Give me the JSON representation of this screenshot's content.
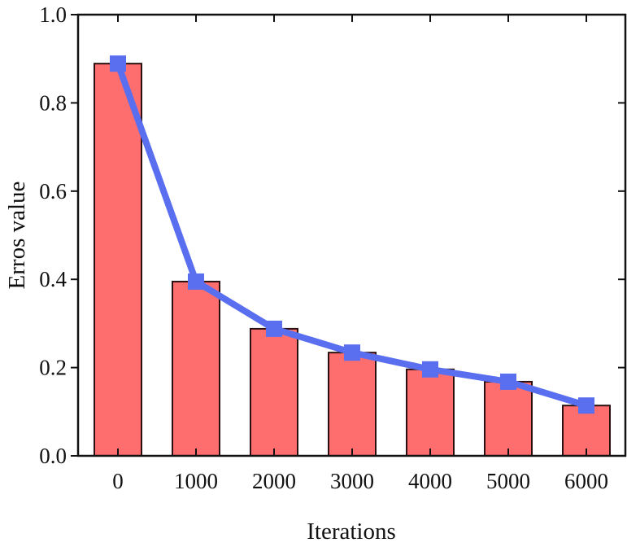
{
  "chart_data": {
    "type": "bar",
    "title": "",
    "xlabel": "Iterations",
    "ylabel": "Erros value",
    "categories": [
      "0",
      "1000",
      "2000",
      "3000",
      "4000",
      "5000",
      "6000"
    ],
    "series": [
      {
        "name": "Erros value (bar)",
        "kind": "bar",
        "color": "#FF6E6E",
        "values": [
          0.889,
          0.395,
          0.288,
          0.234,
          0.196,
          0.168,
          0.114
        ]
      },
      {
        "name": "Erros value (line)",
        "kind": "line",
        "marker": "square",
        "color": "#5A6EF0",
        "values": [
          0.889,
          0.395,
          0.288,
          0.234,
          0.196,
          0.168,
          0.114
        ]
      }
    ],
    "ylim": [
      0.0,
      1.0
    ],
    "yticks": [
      "0.0",
      "0.2",
      "0.4",
      "0.6",
      "0.8",
      "1.0"
    ],
    "ytick_values": [
      0.0,
      0.2,
      0.4,
      0.6,
      0.8,
      1.0
    ],
    "grid": false,
    "legend": null
  },
  "colors": {
    "bar_fill": "#FF6E6E",
    "bar_edge": "#2a1010",
    "line": "#5A6EF0",
    "axis": "#111111"
  }
}
